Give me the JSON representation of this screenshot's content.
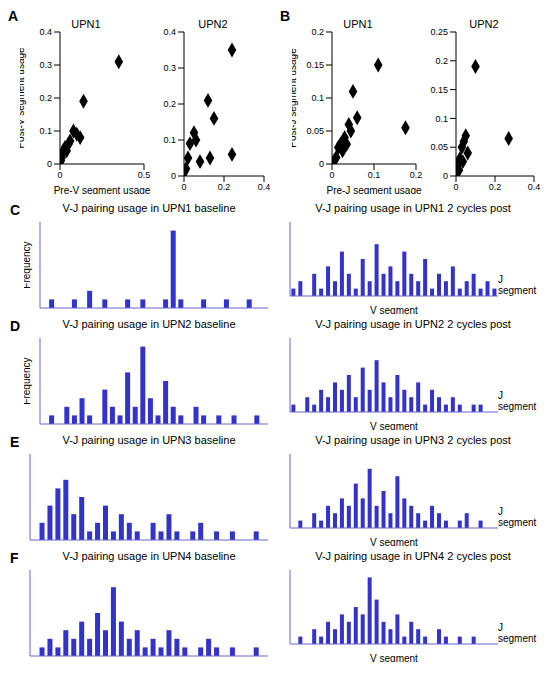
{
  "chart_data": [
    {
      "type": "scatter",
      "title": "UPN1",
      "annotations": [
        "A"
      ],
      "x_label": "Pre-V segment usage",
      "y_label": "Post-V segment usage",
      "x": [
        0.35,
        0.14,
        0.1,
        0.08,
        0.06,
        0.05,
        0.03,
        0.02,
        0.04,
        0.01,
        0.005,
        0.12
      ],
      "values": [
        0.31,
        0.19,
        0.09,
        0.1,
        0.07,
        0.06,
        0.05,
        0.04,
        0.04,
        0.02,
        0.01,
        0.08
      ],
      "xlim": [
        0,
        0.5
      ],
      "xticks": [
        0,
        0.5
      ],
      "ylim": [
        0,
        0.4
      ],
      "yticks": [
        0,
        0.1,
        0.2,
        0.3,
        0.4
      ],
      "color": "#000000",
      "marker": "diamond"
    },
    {
      "type": "scatter",
      "title": "UPN2",
      "x": [
        0.24,
        0.12,
        0.15,
        0.24,
        0.13,
        0.06,
        0.05,
        0.02,
        0.03,
        0.01,
        0.08,
        0.0
      ],
      "values": [
        0.35,
        0.21,
        0.16,
        0.06,
        0.05,
        0.1,
        0.12,
        0.05,
        0.09,
        0.02,
        0.04,
        0.01
      ],
      "xlim": [
        0,
        0.4
      ],
      "xticks": [
        0,
        0.2,
        0.4
      ],
      "ylim": [
        0,
        0.4
      ],
      "yticks": [
        0,
        0.1,
        0.2,
        0.3,
        0.4
      ],
      "color": "#000000",
      "marker": "diamond"
    },
    {
      "type": "scatter",
      "title": "UPN1",
      "annotations": [
        "B"
      ],
      "x_label": "Pre-J segment usage",
      "y_label": "Post-J segment usage",
      "x": [
        0.11,
        0.175,
        0.05,
        0.06,
        0.04,
        0.045,
        0.03,
        0.02,
        0.025,
        0.01,
        0.015,
        0.005,
        0.035
      ],
      "values": [
        0.15,
        0.055,
        0.11,
        0.07,
        0.06,
        0.05,
        0.04,
        0.03,
        0.02,
        0.01,
        0.025,
        0.005,
        0.03
      ],
      "xlim": [
        0,
        0.2
      ],
      "xticks": [
        0,
        0.1,
        0.2
      ],
      "ylim": [
        0,
        0.2
      ],
      "yticks": [
        0,
        0.05,
        0.1,
        0.15,
        0.2
      ],
      "color": "#000000",
      "marker": "diamond"
    },
    {
      "type": "scatter",
      "title": "UPN2",
      "x": [
        0.1,
        0.27,
        0.05,
        0.04,
        0.03,
        0.06,
        0.02,
        0.01,
        0.015,
        0.005,
        0.035
      ],
      "values": [
        0.19,
        0.065,
        0.07,
        0.06,
        0.05,
        0.04,
        0.03,
        0.02,
        0.01,
        0.005,
        0.025
      ],
      "xlim": [
        0,
        0.4
      ],
      "xticks": [
        0,
        0.2,
        0.4
      ],
      "ylim": [
        0,
        0.25
      ],
      "yticks": [
        0,
        0.05,
        0.1,
        0.15,
        0.2,
        0.25
      ],
      "color": "#000000",
      "marker": "diamond"
    },
    {
      "type": "bar",
      "title": "V-J pairing usage in UPN1 baseline",
      "annotations": [
        "C"
      ],
      "y_label": "Frequency",
      "values": [
        0,
        1,
        0,
        0,
        1,
        0,
        2,
        0,
        1,
        0,
        0,
        1,
        0,
        1,
        0,
        0,
        1,
        9,
        1,
        0,
        0,
        1,
        0,
        0,
        1,
        0,
        0,
        1,
        0,
        0
      ],
      "ylim": [
        0,
        10
      ],
      "tick_labels": false,
      "color": "#3333cc"
    },
    {
      "type": "bar",
      "title": "V-J pairing usage in UPN1 2 cycles post",
      "annotations": [
        "J segment"
      ],
      "x_label": "V segment",
      "values": [
        1,
        2,
        0,
        3,
        1,
        4,
        2,
        6,
        3,
        1,
        5,
        2,
        7,
        3,
        4,
        2,
        6,
        3,
        2,
        5,
        1,
        3,
        2,
        4,
        1,
        2,
        3,
        1,
        2,
        1
      ],
      "ylim": [
        0,
        10
      ],
      "tick_labels": false,
      "color": "#3333cc"
    },
    {
      "type": "bar",
      "title": "V-J pairing usage in UPN2 baseline",
      "annotations": [
        "D"
      ],
      "y_label": "Frequency",
      "values": [
        0,
        1,
        0,
        2,
        1,
        3,
        1,
        0,
        4,
        2,
        1,
        6,
        2,
        9,
        3,
        1,
        5,
        2,
        1,
        0,
        2,
        1,
        0,
        1,
        0,
        1,
        0,
        0,
        1,
        0
      ],
      "ylim": [
        0,
        10
      ],
      "tick_labels": false,
      "color": "#3333cc"
    },
    {
      "type": "bar",
      "title": "V-J pairing usage in UPN2 2 cycles post",
      "annotations": [
        "J segment"
      ],
      "x_label": "V segment",
      "values": [
        1,
        0,
        2,
        1,
        3,
        2,
        4,
        3,
        5,
        2,
        6,
        3,
        7,
        4,
        2,
        5,
        3,
        2,
        4,
        1,
        3,
        2,
        1,
        2,
        1,
        0,
        1,
        1,
        0,
        0
      ],
      "ylim": [
        0,
        10
      ],
      "tick_labels": false,
      "color": "#3333cc"
    },
    {
      "type": "bar",
      "title": "V-J pairing usage in UPN3 baseline",
      "annotations": [
        "E"
      ],
      "values": [
        0,
        2,
        4,
        6,
        7,
        3,
        5,
        1,
        2,
        4,
        1,
        3,
        2,
        1,
        0,
        2,
        1,
        3,
        1,
        0,
        1,
        2,
        0,
        1,
        0,
        1,
        0,
        0,
        1,
        0
      ],
      "ylim": [
        0,
        10
      ],
      "tick_labels": false,
      "color": "#3333cc"
    },
    {
      "type": "bar",
      "title": "V-J pairing usage in UPN3 2 cycles post",
      "annotations": [
        "J segment"
      ],
      "x_label": "V segment",
      "values": [
        0,
        1,
        0,
        2,
        1,
        3,
        2,
        4,
        3,
        6,
        4,
        8,
        3,
        5,
        2,
        7,
        4,
        3,
        2,
        1,
        3,
        2,
        1,
        0,
        1,
        2,
        0,
        1,
        0,
        0
      ],
      "ylim": [
        0,
        10
      ],
      "tick_labels": false,
      "color": "#3333cc"
    },
    {
      "type": "bar",
      "title": "V-J pairing usage in UPN4 baseline",
      "annotations": [
        "F"
      ],
      "values": [
        0,
        1,
        2,
        1,
        3,
        2,
        4,
        2,
        5,
        3,
        8,
        4,
        2,
        3,
        1,
        2,
        1,
        3,
        2,
        1,
        0,
        1,
        2,
        1,
        0,
        1,
        0,
        0,
        1,
        0
      ],
      "ylim": [
        0,
        10
      ],
      "tick_labels": false,
      "color": "#3333cc"
    },
    {
      "type": "bar",
      "title": "V-J pairing usage in UPN4 2 cycles post",
      "annotations": [
        "J segment"
      ],
      "x_label": "V segment",
      "values": [
        0,
        1,
        0,
        2,
        1,
        3,
        2,
        4,
        3,
        5,
        4,
        9,
        6,
        3,
        2,
        4,
        1,
        3,
        2,
        1,
        0,
        2,
        1,
        0,
        1,
        0,
        1,
        0,
        0,
        0
      ],
      "ylim": [
        0,
        10
      ],
      "tick_labels": false,
      "color": "#3333cc"
    }
  ]
}
